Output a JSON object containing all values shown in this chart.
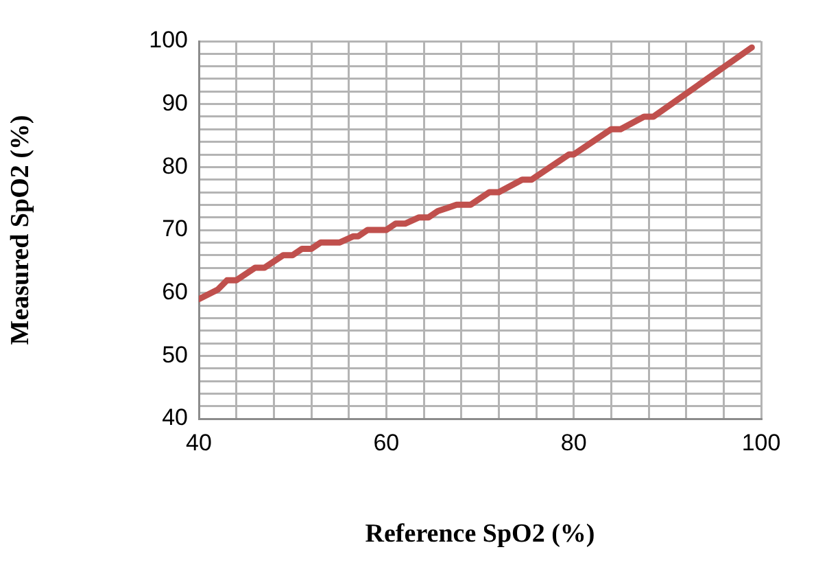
{
  "chart_data": {
    "type": "line",
    "xlabel": "Reference SpO2 (%)",
    "ylabel": "Measured SpO2 (%)",
    "xlim": [
      40,
      100
    ],
    "ylim": [
      40,
      100
    ],
    "xticks": [
      40,
      {
        "value": 44,
        "label": null
      },
      {
        "value": 48,
        "label": null
      },
      {
        "value": 52,
        "label": null
      },
      {
        "value": 56,
        "label": null
      },
      60,
      {
        "value": 64,
        "label": null
      },
      {
        "value": 68,
        "label": null
      },
      {
        "value": 72,
        "label": null
      },
      {
        "value": 76,
        "label": null
      },
      80,
      {
        "value": 84,
        "label": null
      },
      {
        "value": 88,
        "label": null
      },
      {
        "value": 92,
        "label": null
      },
      {
        "value": 96,
        "label": null
      },
      100
    ],
    "yticks": [
      40,
      {
        "value": 42,
        "label": null
      },
      {
        "value": 44,
        "label": null
      },
      {
        "value": 46,
        "label": null
      },
      {
        "value": 48,
        "label": null
      },
      50,
      {
        "value": 52,
        "label": null
      },
      {
        "value": 54,
        "label": null
      },
      {
        "value": 56,
        "label": null
      },
      {
        "value": 58,
        "label": null
      },
      60,
      {
        "value": 62,
        "label": null
      },
      {
        "value": 64,
        "label": null
      },
      {
        "value": 66,
        "label": null
      },
      {
        "value": 68,
        "label": null
      },
      70,
      {
        "value": 72,
        "label": null
      },
      {
        "value": 74,
        "label": null
      },
      {
        "value": 76,
        "label": null
      },
      {
        "value": 78,
        "label": null
      },
      80,
      {
        "value": 82,
        "label": null
      },
      {
        "value": 84,
        "label": null
      },
      {
        "value": 86,
        "label": null
      },
      {
        "value": 88,
        "label": null
      },
      90,
      {
        "value": 92,
        "label": null
      },
      {
        "value": 94,
        "label": null
      },
      {
        "value": 96,
        "label": null
      },
      {
        "value": 98,
        "label": null
      },
      100
    ],
    "grid": true,
    "marker": "none",
    "line_style": "solid",
    "series": [
      {
        "color": "#c0504d",
        "x": [
          40,
          42,
          43,
          44,
          46,
          47,
          49,
          50,
          51,
          52,
          53,
          55,
          56.5,
          57,
          58,
          60,
          61,
          62,
          63.5,
          64.5,
          65.5,
          66.5,
          67.5,
          69,
          71,
          72,
          74.5,
          75.5,
          79.5,
          80,
          84,
          85,
          87.5,
          88.5,
          99
        ],
        "values": [
          59,
          60.5,
          62,
          62,
          64,
          64,
          66,
          66,
          67,
          67,
          68,
          68,
          69,
          69,
          70,
          70,
          71,
          71,
          72,
          72,
          73,
          73.5,
          74,
          74,
          76,
          76,
          78,
          78,
          82,
          82,
          86,
          86,
          88,
          88,
          99
        ]
      }
    ]
  }
}
